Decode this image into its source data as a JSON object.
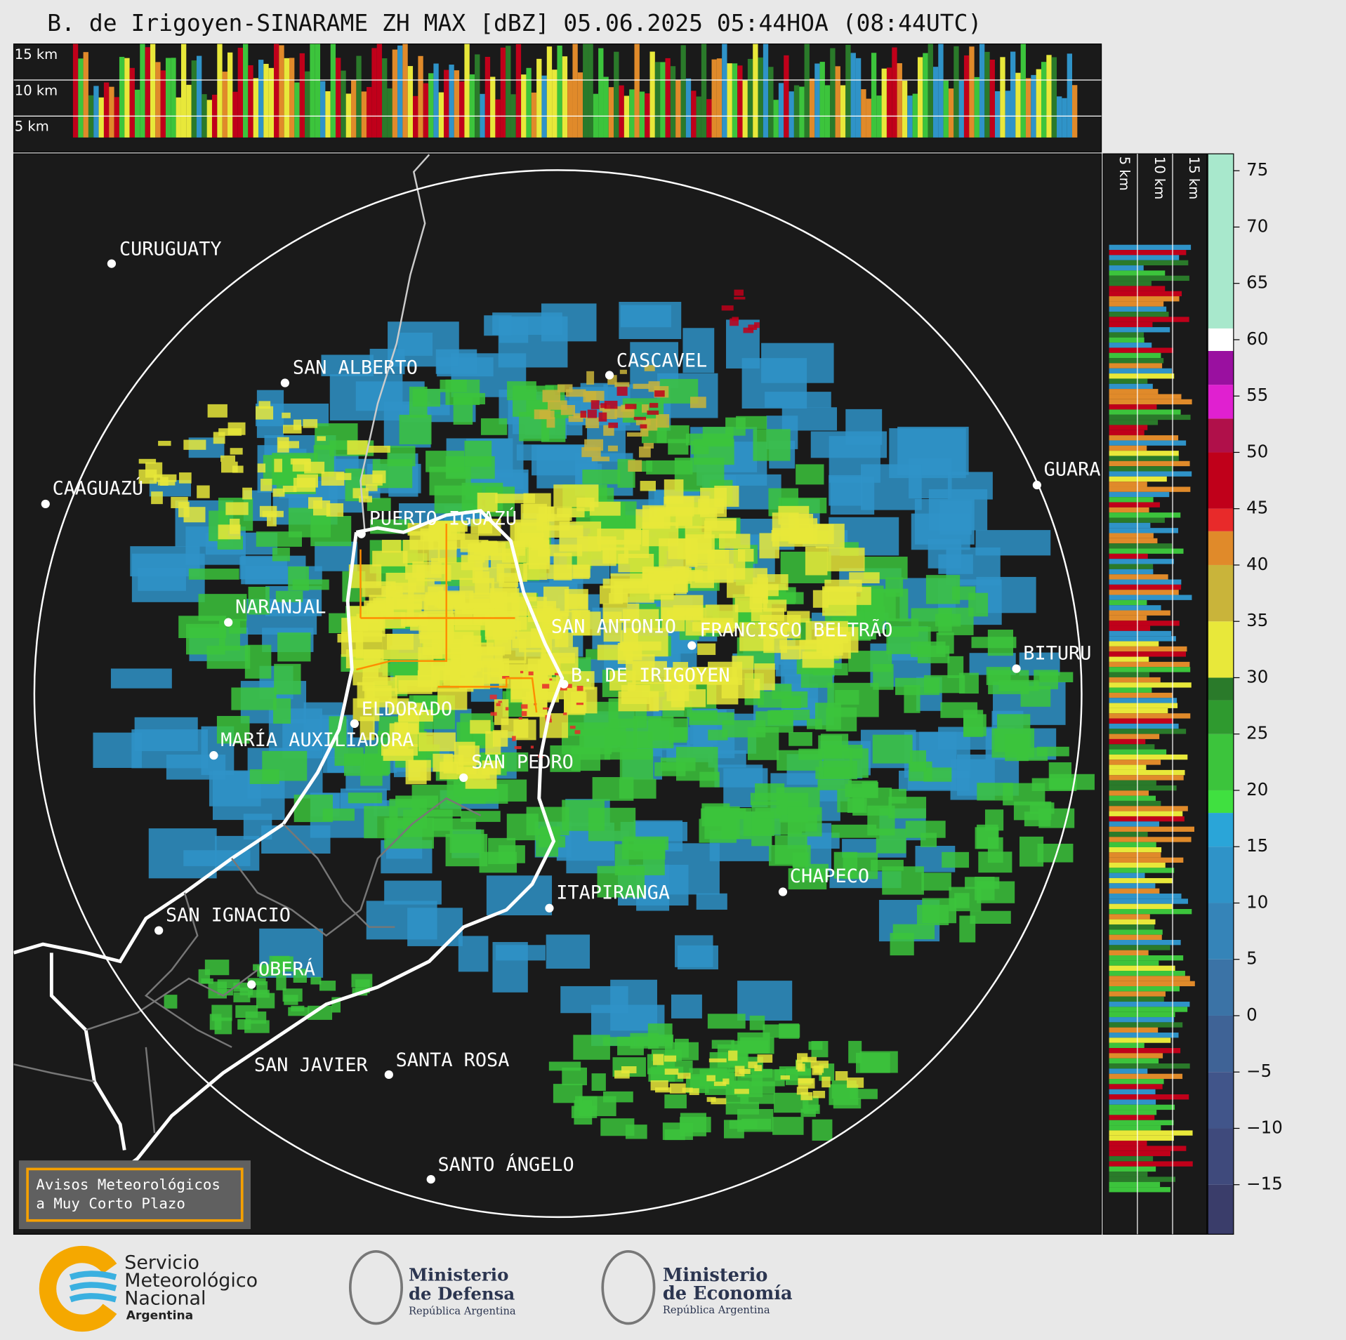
{
  "title": "B. de Irigoyen-SINARAME ZH MAX [dBZ] 05.06.2025 05:44HOA (08:44UTC)",
  "top_heights": [
    "15 km",
    "10 km",
    "5 km"
  ],
  "side_heights": [
    "5 km",
    "10 km",
    "15 km"
  ],
  "cities": [
    "CURUGUATY",
    "SAN ALBERTO",
    "CASCAVEL",
    "CAAGUAZÚ",
    "GUARA",
    "PUERTO IGUAZÚ",
    "NARANJAL",
    "SAN ANTONIO",
    "FRANCISCO BELTRÃO",
    "BITURU",
    "B. DE IRIGOYEN",
    "ELDORADO",
    "MARÍA AUXILIADORA",
    "SAN PEDRO",
    "CHAPECO",
    "ITAPIRANGA",
    "SAN IGNACIO",
    "OBERÁ",
    "SAN JAVIER",
    "SANTA ROSA",
    "SANTO ÁNGELO"
  ],
  "colorbar": {
    "lim": [
      -19.4,
      76.5
    ],
    "ticks": [
      75,
      70,
      65,
      60,
      55,
      50,
      45,
      40,
      35,
      30,
      25,
      20,
      15,
      10,
      5,
      0,
      {
        "value": -5,
        "label": "−5"
      },
      {
        "value": -10,
        "label": "−10"
      },
      {
        "value": -15,
        "label": "−15"
      }
    ],
    "bands": [
      {
        "from": -19.4,
        "to": -15,
        "color": "#3a3d6a"
      },
      {
        "from": -15,
        "to": -10,
        "color": "#3f4a7c"
      },
      {
        "from": -10,
        "to": -5,
        "color": "#41558a"
      },
      {
        "from": -5,
        "to": 0,
        "color": "#3f6396"
      },
      {
        "from": 0,
        "to": 5,
        "color": "#3b73a6"
      },
      {
        "from": 5,
        "to": 10,
        "color": "#3584b8"
      },
      {
        "from": 10,
        "to": 15,
        "color": "#2f93c8"
      },
      {
        "from": 15,
        "to": 18,
        "color": "#2aa5d8"
      },
      {
        "from": 18,
        "to": 20,
        "color": "#40e040"
      },
      {
        "from": 20,
        "to": 25,
        "color": "#3cc43c"
      },
      {
        "from": 25,
        "to": 28,
        "color": "#2f9a2f"
      },
      {
        "from": 28,
        "to": 30,
        "color": "#2a7a2a"
      },
      {
        "from": 30,
        "to": 35,
        "color": "#e8e83a"
      },
      {
        "from": 35,
        "to": 40,
        "color": "#c9b43a"
      },
      {
        "from": 40,
        "to": 43,
        "color": "#e08a2a"
      },
      {
        "from": 43,
        "to": 45,
        "color": "#e82a2a"
      },
      {
        "from": 45,
        "to": 50,
        "color": "#c0001a"
      },
      {
        "from": 50,
        "to": 53,
        "color": "#b0104a"
      },
      {
        "from": 53,
        "to": 56,
        "color": "#e020d0"
      },
      {
        "from": 56,
        "to": 59,
        "color": "#9a10a0"
      },
      {
        "from": 59,
        "to": 61,
        "color": "#ffffff"
      },
      {
        "from": 61,
        "to": 76.5,
        "color": "#a8e8cc"
      }
    ]
  },
  "notice": [
    "Avisos Meteorológicos",
    "a Muy Corto Plazo"
  ],
  "logos": {
    "smn": [
      "Servicio",
      "Meteorológico",
      "Nacional",
      "Argentina"
    ],
    "defensa": [
      "Ministerio",
      "de Defensa",
      "República Argentina"
    ],
    "economia": [
      "Ministerio",
      "de Economía",
      "República Argentina"
    ]
  }
}
